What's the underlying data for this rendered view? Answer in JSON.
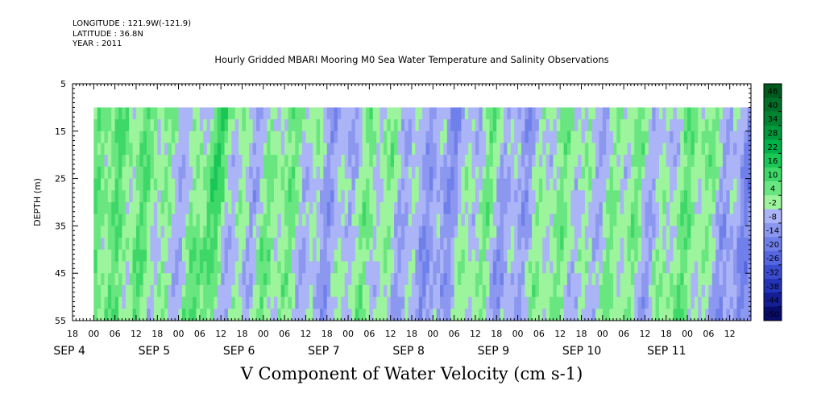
{
  "header": {
    "longitude": "LONGITUDE : 121.9W(-121.9)",
    "latitude": "LATITUDE : 36.8N",
    "year": "YEAR : 2011"
  },
  "chart_data": {
    "type": "heatmap",
    "title": "Hourly Gridded MBARI Mooring M0 Sea Water Temperature and Salinity Observations",
    "xlabel": "V Component of Water Velocity (cm s-1)",
    "ylabel": "DEPTH (m)",
    "ylim": [
      5,
      55
    ],
    "y_inverted": true,
    "y_ticks": [
      5,
      15,
      25,
      35,
      45,
      55
    ],
    "x_range_hours": [
      -6,
      186
    ],
    "data_extent": {
      "x_start_hour": 0,
      "x_end_hour": 186,
      "depth_top": 10,
      "depth_bottom": 55
    },
    "x_hour_ticks": [
      "18",
      "00",
      "06",
      "12",
      "18",
      "00",
      "06",
      "12",
      "18",
      "00",
      "06",
      "12",
      "18",
      "00",
      "06",
      "12",
      "18",
      "00",
      "06",
      "12",
      "18",
      "00",
      "06",
      "12",
      "18",
      "00",
      "06",
      "12",
      "18",
      "00",
      "06",
      "12"
    ],
    "x_hour_tick_values": [
      -6,
      0,
      6,
      12,
      18,
      24,
      30,
      36,
      42,
      48,
      54,
      60,
      66,
      72,
      78,
      84,
      90,
      96,
      102,
      108,
      114,
      120,
      126,
      132,
      138,
      144,
      150,
      156,
      162,
      168,
      174,
      180
    ],
    "x_day_labels": [
      {
        "label": "SEP  4",
        "hour": 0
      },
      {
        "label": "SEP  5",
        "hour": 24
      },
      {
        "label": "SEP  6",
        "hour": 48
      },
      {
        "label": "SEP  7",
        "hour": 72
      },
      {
        "label": "SEP  8",
        "hour": 96
      },
      {
        "label": "SEP  9",
        "hour": 120
      },
      {
        "label": "SEP 10",
        "hour": 144
      },
      {
        "label": "SEP 11",
        "hour": 168
      }
    ],
    "colorbar": {
      "levels": [
        48,
        46,
        40,
        34,
        28,
        22,
        16,
        10,
        4,
        -2,
        -8,
        -14,
        -20,
        -26,
        -32,
        -38,
        -44,
        -50
      ],
      "tick_labels": [
        "46",
        "40",
        "34",
        "28",
        "22",
        "16",
        "10",
        "4",
        "-2",
        "-8",
        "-14",
        "-20",
        "-26",
        "-32",
        "-38",
        "-44",
        "-50"
      ],
      "colors": [
        "#005a1e",
        "#006f27",
        "#008432",
        "#009a3c",
        "#00b048",
        "#19c656",
        "#3ed868",
        "#6ae680",
        "#9cf49c",
        "#aab4f6",
        "#8c98f0",
        "#7080ea",
        "#5466e0",
        "#3a4cd0",
        "#2434b8",
        "#141e96",
        "#080c6a"
      ]
    },
    "time_profile_cm_s": [
      {
        "hour": 0,
        "v": 3
      },
      {
        "hour": 6,
        "v": 8
      },
      {
        "hour": 12,
        "v": 4
      },
      {
        "hour": 18,
        "v": 6
      },
      {
        "hour": 24,
        "v": -2
      },
      {
        "hour": 30,
        "v": -4
      },
      {
        "hour": 36,
        "v": 14
      },
      {
        "hour": 42,
        "v": -3
      },
      {
        "hour": 48,
        "v": -5
      },
      {
        "hour": 54,
        "v": 5
      },
      {
        "hour": 60,
        "v": 2
      },
      {
        "hour": 66,
        "v": -6
      },
      {
        "hour": 72,
        "v": -8
      },
      {
        "hour": 78,
        "v": 1
      },
      {
        "hour": 84,
        "v": 2
      },
      {
        "hour": 90,
        "v": -4
      },
      {
        "hour": 96,
        "v": -7
      },
      {
        "hour": 102,
        "v": -11
      },
      {
        "hour": 108,
        "v": -3
      },
      {
        "hour": 114,
        "v": 4
      },
      {
        "hour": 120,
        "v": -9
      },
      {
        "hour": 126,
        "v": -6
      },
      {
        "hour": 132,
        "v": 3
      },
      {
        "hour": 138,
        "v": 2
      },
      {
        "hour": 144,
        "v": -5
      },
      {
        "hour": 150,
        "v": 1
      },
      {
        "hour": 156,
        "v": 3
      },
      {
        "hour": 162,
        "v": -7
      },
      {
        "hour": 168,
        "v": 4
      },
      {
        "hour": 174,
        "v": 5
      },
      {
        "hour": 180,
        "v": -4
      },
      {
        "hour": 186,
        "v": -12
      }
    ]
  }
}
